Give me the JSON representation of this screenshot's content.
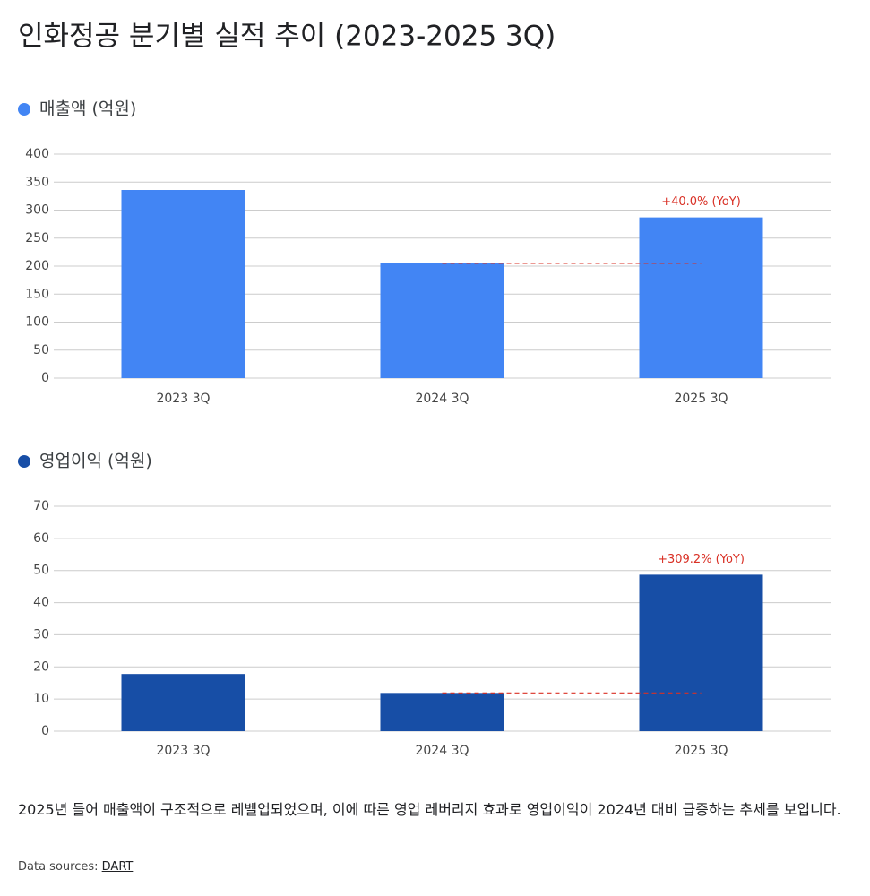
{
  "title": "인화정공 분기별 실적 추이 (2023-2025 3Q)",
  "chart_data": [
    {
      "type": "bar",
      "categories": [
        "2023 3Q",
        "2024 3Q",
        "2025 3Q"
      ],
      "series": [
        {
          "name": "매출액 (억원)",
          "color": "#4285f4",
          "values": [
            336,
            205,
            287
          ]
        }
      ],
      "ylim": [
        0,
        400
      ],
      "yticks": [
        0,
        50,
        100,
        150,
        200,
        250,
        300,
        350,
        400
      ],
      "grid": true,
      "annotation": "+40.0% (YoY)",
      "annotation_color": "#d93025"
    },
    {
      "type": "bar",
      "categories": [
        "2023 3Q",
        "2024 3Q",
        "2025 3Q"
      ],
      "series": [
        {
          "name": "영업이익 (억원)",
          "color": "#174ea6",
          "values": [
            17.8,
            11.9,
            48.7
          ]
        }
      ],
      "ylim": [
        0,
        70
      ],
      "yticks": [
        0,
        10,
        20,
        30,
        40,
        50,
        60,
        70
      ],
      "grid": true,
      "annotation": "+309.2% (YoY)",
      "annotation_color": "#d93025"
    }
  ],
  "note": "2025년 들어 매출액이 구조적으로 레벨업되었으며, 이에 따른 영업 레버리지 효과로 영업이익이 2024년 대비 급증하는 추세를 보입니다.",
  "source_label": "Data sources:",
  "source": "DART"
}
